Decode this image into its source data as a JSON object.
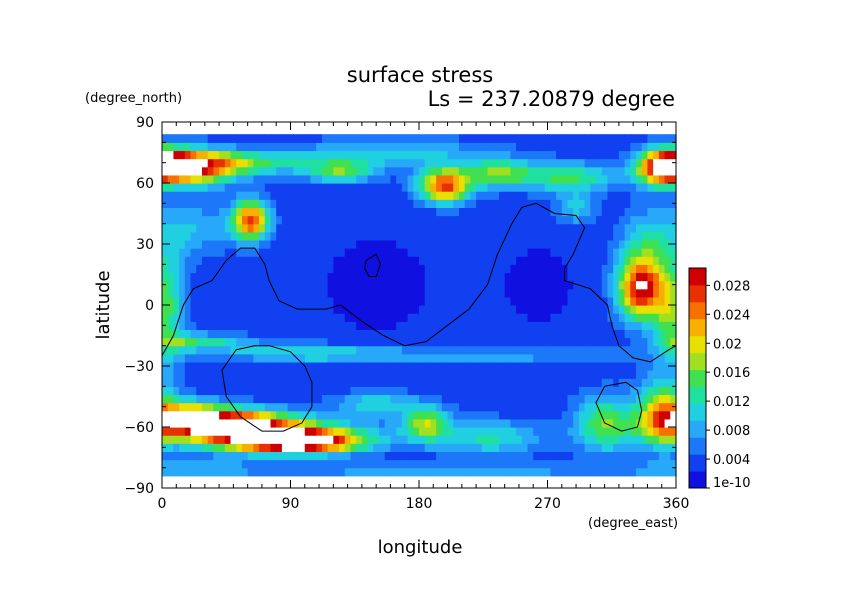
{
  "chart_data": {
    "type": "heatmap",
    "title": "surface stress",
    "subtitle": "Ls = 237.20879 degree",
    "xlabel": "longitude",
    "ylabel": "latitude",
    "xunit": "(degree_east)",
    "yunit": "(degree_north)",
    "xlim": [
      0,
      360
    ],
    "ylim": [
      -90,
      90
    ],
    "x_ticks": [
      "0",
      "90",
      "180",
      "270",
      "360"
    ],
    "y_ticks": [
      "90",
      "60",
      "30",
      "0",
      "−30",
      "−60",
      "−90"
    ],
    "colorbar": {
      "min_label": "1e-10",
      "labels": [
        "1e-10",
        "0.004",
        "0.008",
        "0.012",
        "0.016",
        "0.02",
        "0.024",
        "0.028"
      ],
      "range": [
        0,
        0.03
      ],
      "colors": [
        "#1010e0",
        "#1040f0",
        "#1c78f8",
        "#28a8f8",
        "#20d0e0",
        "#20e0a0",
        "#40e050",
        "#a0e020",
        "#e8e000",
        "#f8b000",
        "#f87000",
        "#e83000",
        "#d00000"
      ]
    },
    "background_value": 0.003,
    "features": [
      {
        "lon": 20,
        "lat": 68,
        "sx": 22,
        "sy": 6,
        "v": 0.024
      },
      {
        "lon": 8,
        "lat": 70,
        "sx": 10,
        "sy": 5,
        "v": 0.012
      },
      {
        "lon": 350,
        "lat": 68,
        "sx": 12,
        "sy": 6,
        "v": 0.024
      },
      {
        "lon": 60,
        "lat": 70,
        "sx": 30,
        "sy": 4,
        "v": 0.01
      },
      {
        "lon": 125,
        "lat": 66,
        "sx": 18,
        "sy": 4,
        "v": 0.012
      },
      {
        "lon": 198,
        "lat": 59,
        "sx": 13,
        "sy": 6,
        "v": 0.023
      },
      {
        "lon": 235,
        "lat": 65,
        "sx": 18,
        "sy": 5,
        "v": 0.012
      },
      {
        "lon": 285,
        "lat": 63,
        "sx": 25,
        "sy": 5,
        "v": 0.011
      },
      {
        "lon": 160,
        "lat": 75,
        "sx": 50,
        "sy": 5,
        "v": 0.007
      },
      {
        "lon": 62,
        "lat": 42,
        "sx": 9,
        "sy": 7,
        "v": 0.023
      },
      {
        "lon": 20,
        "lat": 38,
        "sx": 20,
        "sy": 10,
        "v": 0.006
      },
      {
        "lon": 340,
        "lat": 25,
        "sx": 14,
        "sy": 14,
        "v": 0.01
      },
      {
        "lon": 335,
        "lat": 7,
        "sx": 11,
        "sy": 10,
        "v": 0.023
      },
      {
        "lon": 355,
        "lat": -5,
        "sx": 8,
        "sy": 15,
        "v": 0.01
      },
      {
        "lon": 25,
        "lat": -18,
        "sx": 25,
        "sy": 3,
        "v": 0.01
      },
      {
        "lon": 100,
        "lat": -23,
        "sx": 40,
        "sy": 3,
        "v": 0.008
      },
      {
        "lon": 220,
        "lat": -25,
        "sx": 80,
        "sy": 3,
        "v": 0.005
      },
      {
        "lon": 40,
        "lat": -58,
        "sx": 32,
        "sy": 5,
        "v": 0.026
      },
      {
        "lon": 95,
        "lat": -67,
        "sx": 30,
        "sy": 4,
        "v": 0.027
      },
      {
        "lon": 70,
        "lat": -63,
        "sx": 50,
        "sy": 6,
        "v": 0.015
      },
      {
        "lon": 15,
        "lat": -52,
        "sx": 20,
        "sy": 5,
        "v": 0.01
      },
      {
        "lon": 185,
        "lat": -58,
        "sx": 12,
        "sy": 6,
        "v": 0.014
      },
      {
        "lon": 230,
        "lat": -65,
        "sx": 25,
        "sy": 6,
        "v": 0.009
      },
      {
        "lon": 150,
        "lat": -48,
        "sx": 20,
        "sy": 4,
        "v": 0.008
      },
      {
        "lon": 310,
        "lat": -58,
        "sx": 15,
        "sy": 10,
        "v": 0.012
      },
      {
        "lon": 350,
        "lat": -52,
        "sx": 12,
        "sy": 12,
        "v": 0.014
      },
      {
        "lon": 20,
        "lat": -80,
        "sx": 30,
        "sy": 3,
        "v": 0.006
      },
      {
        "lon": 200,
        "lat": -82,
        "sx": 100,
        "sy": 3,
        "v": 0.005
      },
      {
        "lon": 290,
        "lat": 48,
        "sx": 10,
        "sy": 6,
        "v": 0.007
      },
      {
        "lon": 8,
        "lat": 0,
        "sx": 8,
        "sy": 20,
        "v": 0.007
      },
      {
        "lon": 265,
        "lat": 10,
        "sx": 25,
        "sy": 20,
        "v": -0.001
      },
      {
        "lon": 150,
        "lat": 10,
        "sx": 40,
        "sy": 25,
        "v": -0.001
      }
    ],
    "contours": [
      [
        [
          0,
          -25
        ],
        [
          8,
          -15
        ],
        [
          15,
          0
        ],
        [
          22,
          8
        ],
        [
          35,
          12
        ],
        [
          45,
          22
        ],
        [
          55,
          28
        ],
        [
          65,
          28
        ],
        [
          72,
          20
        ],
        [
          75,
          12
        ],
        [
          82,
          2
        ],
        [
          95,
          -2
        ],
        [
          115,
          -2
        ],
        [
          125,
          0
        ],
        [
          140,
          -8
        ],
        [
          155,
          -15
        ],
        [
          170,
          -20
        ],
        [
          185,
          -18
        ],
        [
          200,
          -10
        ],
        [
          215,
          -2
        ],
        [
          228,
          10
        ],
        [
          235,
          25
        ],
        [
          245,
          40
        ],
        [
          252,
          48
        ],
        [
          262,
          50
        ],
        [
          275,
          45
        ],
        [
          290,
          44
        ],
        [
          296,
          38
        ],
        [
          288,
          25
        ],
        [
          282,
          18
        ],
        [
          282,
          12
        ],
        [
          300,
          8
        ],
        [
          312,
          0
        ],
        [
          315,
          -10
        ],
        [
          320,
          -20
        ],
        [
          330,
          -26
        ],
        [
          342,
          -28
        ],
        [
          355,
          -22
        ],
        [
          360,
          -20
        ]
      ],
      [
        [
          143,
          22
        ],
        [
          150,
          25
        ],
        [
          153,
          20
        ],
        [
          150,
          14
        ],
        [
          145,
          14
        ],
        [
          142,
          18
        ],
        [
          143,
          22
        ]
      ],
      [
        [
          75,
          -20
        ],
        [
          90,
          -23
        ],
        [
          100,
          -30
        ],
        [
          105,
          -38
        ],
        [
          105,
          -50
        ],
        [
          98,
          -58
        ],
        [
          85,
          -62
        ],
        [
          70,
          -62
        ],
        [
          55,
          -55
        ],
        [
          45,
          -45
        ],
        [
          42,
          -32
        ],
        [
          52,
          -22
        ],
        [
          65,
          -20
        ],
        [
          75,
          -20
        ]
      ],
      [
        [
          325,
          -38
        ],
        [
          333,
          -42
        ],
        [
          336,
          -52
        ],
        [
          333,
          -60
        ],
        [
          322,
          -62
        ],
        [
          310,
          -58
        ],
        [
          304,
          -48
        ],
        [
          310,
          -40
        ],
        [
          325,
          -38
        ]
      ]
    ]
  }
}
